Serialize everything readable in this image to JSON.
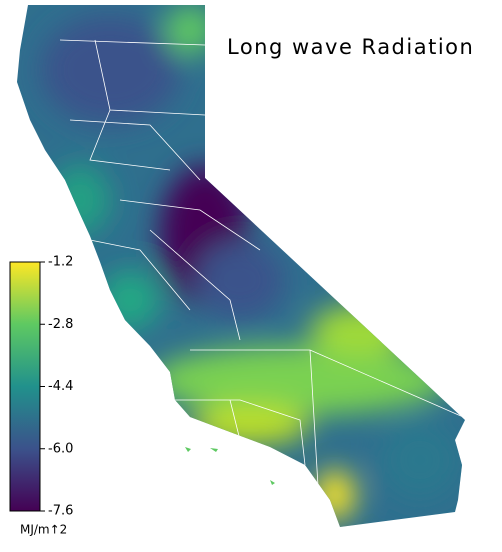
{
  "map": {
    "title": "Long wave Radiation",
    "colorbar": {
      "lim": [
        -7.6,
        -1.2
      ],
      "ticks": [
        -1.2,
        -2.8,
        -4.4,
        {
          "value": -6,
          "label": "-6.0"
        },
        -7.6
      ],
      "unit": "MJ/m↑2"
    }
  }
}
